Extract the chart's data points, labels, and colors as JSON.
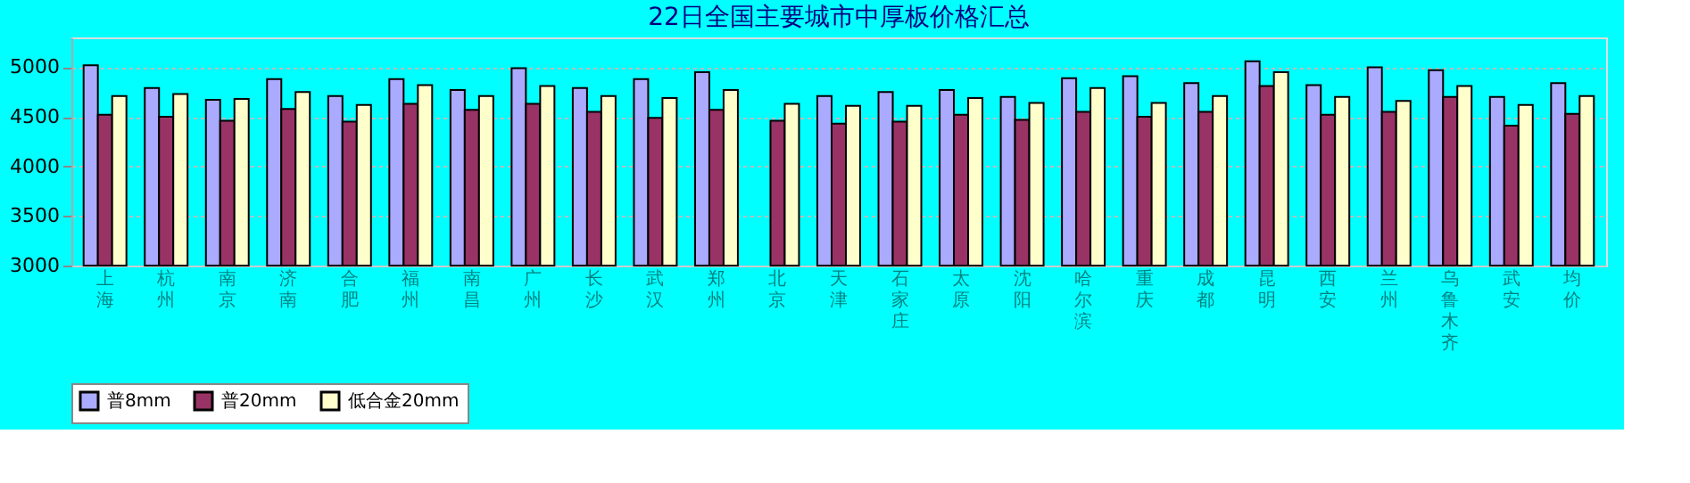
{
  "chart_data": {
    "type": "bar",
    "title": "22日全国主要城市中厚板价格汇总",
    "categories": [
      "上海",
      "杭州",
      "南京",
      "济南",
      "合肥",
      "福州",
      "南昌",
      "广州",
      "长沙",
      "武汉",
      "郑州",
      "北京",
      "天津",
      "石家庄",
      "太原",
      "沈阳",
      "哈尔滨",
      "重庆",
      "成都",
      "昆明",
      "西安",
      "兰州",
      "乌鲁木齐",
      "武安",
      "均价"
    ],
    "series": [
      {
        "name": "普8mm",
        "color": "#aaaaff",
        "values": [
          5020,
          4790,
          4670,
          4880,
          4710,
          4880,
          4770,
          4990,
          4790,
          4880,
          4950,
          null,
          4710,
          4750,
          4770,
          4700,
          4890,
          4910,
          4840,
          5060,
          4820,
          5000,
          4970,
          4700,
          4840
        ]
      },
      {
        "name": "普20mm",
        "color": "#993366",
        "values": [
          4520,
          4500,
          4460,
          4580,
          4450,
          4630,
          4570,
          4630,
          4550,
          4490,
          4570,
          4460,
          4430,
          4450,
          4520,
          4470,
          4550,
          4500,
          4550,
          4810,
          4520,
          4550,
          4700,
          4410,
          4530
        ]
      },
      {
        "name": "低合金20mm",
        "color": "#ffffcc",
        "values": [
          4710,
          4730,
          4680,
          4750,
          4620,
          4820,
          4710,
          4810,
          4710,
          4690,
          4770,
          4630,
          4610,
          4610,
          4690,
          4640,
          4790,
          4640,
          4710,
          4950,
          4700,
          4660,
          4810,
          4620,
          4710
        ]
      }
    ],
    "ylim": [
      3000,
      5300
    ],
    "yticks": [
      3000,
      3500,
      4000,
      4500,
      5000
    ],
    "grid": "y",
    "legend": "bottom"
  }
}
